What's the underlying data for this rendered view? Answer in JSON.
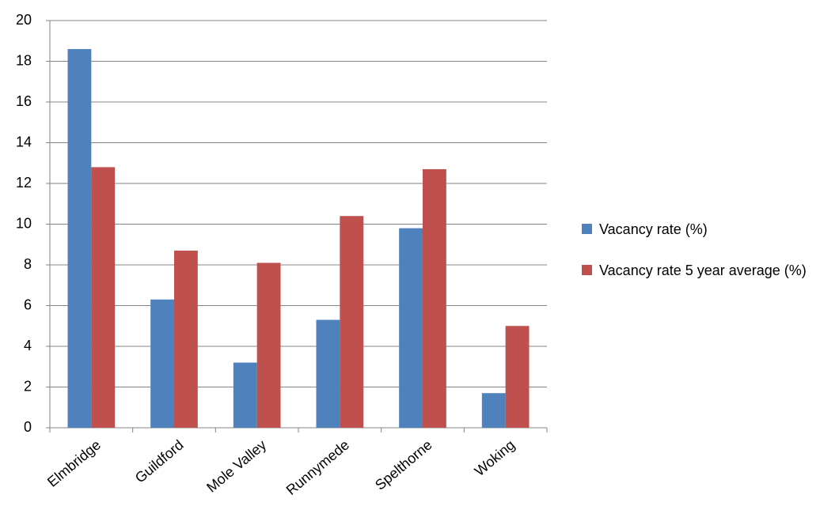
{
  "chart_data": {
    "type": "bar",
    "categories": [
      "Elmbridge",
      "Guildford",
      "Mole Valley",
      "Runnymede",
      "Spelthorne",
      "Woking"
    ],
    "series": [
      {
        "name": "Vacancy rate (%)",
        "color": "#4f81bd",
        "values": [
          18.6,
          6.3,
          3.2,
          5.3,
          9.8,
          1.7
        ]
      },
      {
        "name": "Vacancy rate 5 year average (%)",
        "color": "#c0504d",
        "values": [
          12.8,
          8.7,
          8.1,
          10.4,
          12.7,
          5.0
        ]
      }
    ],
    "ylim": [
      0,
      20
    ],
    "yticks": [
      0,
      2,
      4,
      6,
      8,
      10,
      12,
      14,
      16,
      18,
      20
    ],
    "grid": true,
    "legend": "right"
  }
}
